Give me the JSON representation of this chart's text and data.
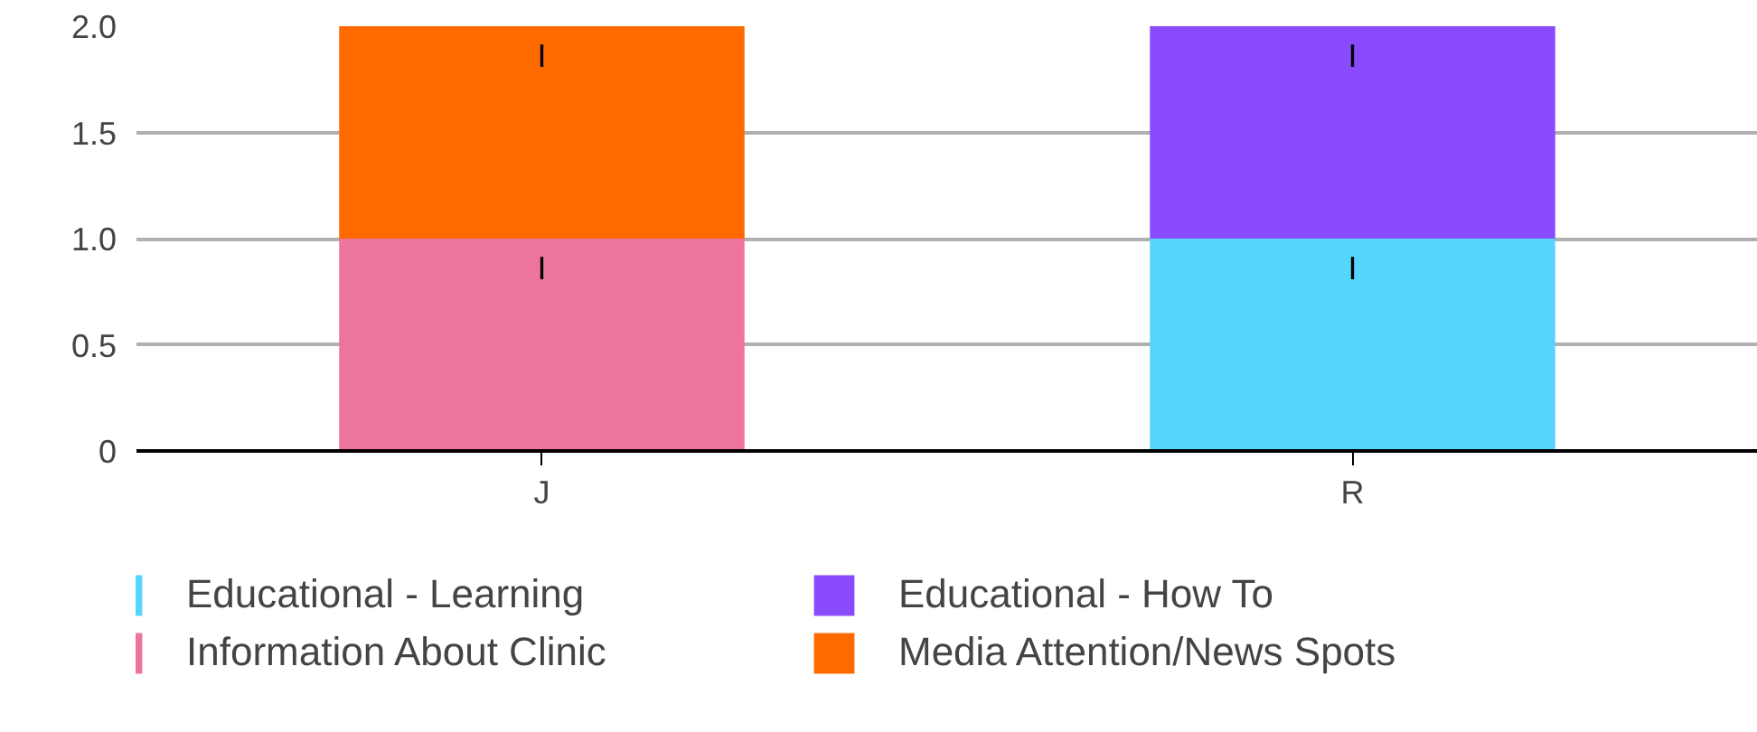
{
  "chart_data": {
    "type": "bar",
    "stacked": true,
    "categories": [
      "J",
      "R"
    ],
    "series": [
      {
        "name": "Educational - Learning",
        "color": "#55d5fb",
        "values": [
          null,
          1
        ],
        "value_labels": [
          null,
          "I"
        ]
      },
      {
        "name": "Information About Clinic",
        "color": "#ee74a0",
        "values": [
          1,
          null
        ],
        "value_labels": [
          "I",
          null
        ]
      },
      {
        "name": "Educational - How To",
        "color": "#8a4bfc",
        "values": [
          null,
          1
        ],
        "value_labels": [
          null,
          "I"
        ]
      },
      {
        "name": "Media Attention/News Spots",
        "color": "#fe6a00",
        "values": [
          1,
          null
        ],
        "value_labels": [
          "I",
          null
        ]
      }
    ],
    "ylim": [
      0,
      2
    ],
    "yticks": [
      0,
      0.5,
      {
        "value": 1,
        "label": "1.0"
      },
      1.5,
      {
        "value": 2,
        "label": "2.0"
      }
    ],
    "grid": "y",
    "legend": "bottom"
  }
}
